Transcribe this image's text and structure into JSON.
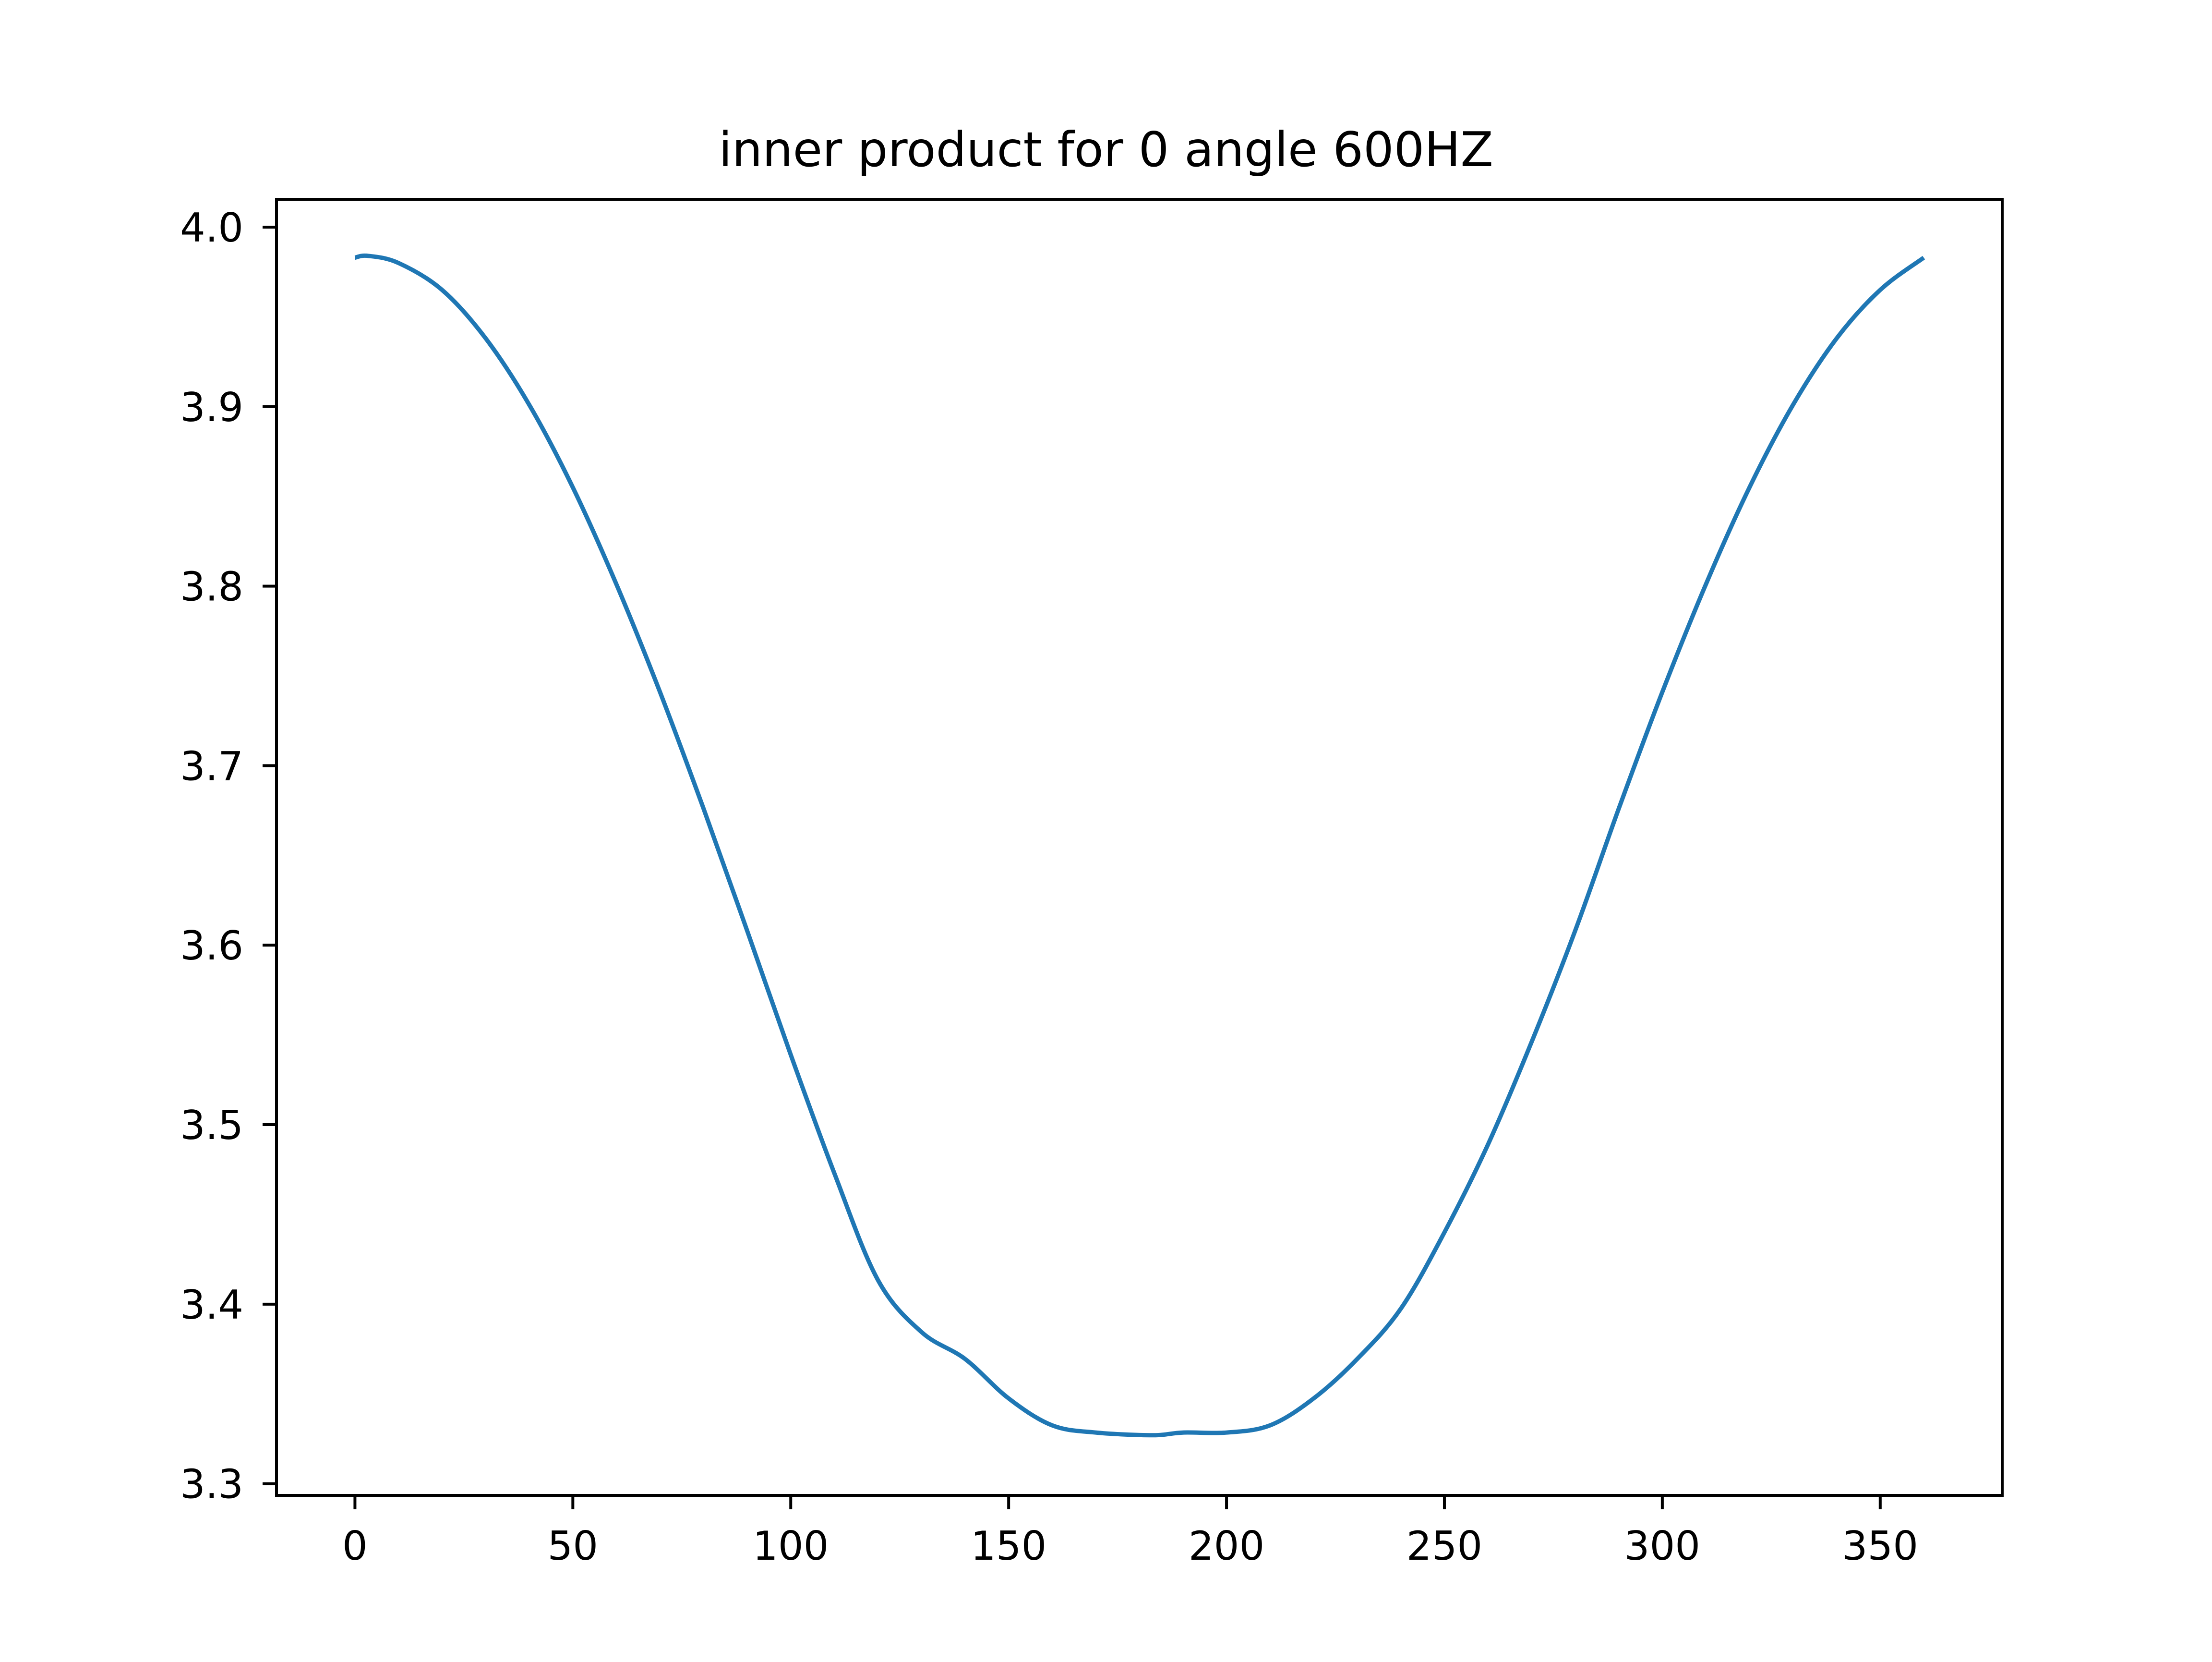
{
  "chart_data": {
    "type": "line",
    "title": "inner product for 0 angle 600HZ",
    "xlabel": "",
    "ylabel": "",
    "xlim": [
      -18,
      378
    ],
    "ylim": [
      3.2935,
      4.0155
    ],
    "xticks": [
      0,
      50,
      100,
      150,
      200,
      250,
      300,
      350
    ],
    "xtick_labels": [
      "0",
      "50",
      "100",
      "150",
      "200",
      "250",
      "300",
      "350"
    ],
    "yticks": [
      3.3,
      3.4,
      3.5,
      3.6,
      3.7,
      3.8,
      3.9,
      4.0
    ],
    "ytick_labels": [
      "3.3",
      "3.4",
      "3.5",
      "3.6",
      "3.7",
      "3.8",
      "3.9",
      "4.0"
    ],
    "grid": false,
    "legend": "none",
    "series": [
      {
        "color": "#1f77b4",
        "x": [
          0,
          3,
          10,
          20,
          30,
          40,
          50,
          60,
          70,
          80,
          90,
          100,
          110,
          120,
          130,
          140,
          150,
          160,
          170,
          183,
          190,
          200,
          210,
          220,
          230,
          240,
          250,
          260,
          270,
          280,
          290,
          300,
          310,
          320,
          330,
          340,
          350,
          360
        ],
        "y": [
          3.983,
          3.984,
          3.98,
          3.965,
          3.938,
          3.901,
          3.855,
          3.801,
          3.741,
          3.676,
          3.608,
          3.539,
          3.473,
          3.4135,
          3.3845,
          3.3695,
          3.3475,
          3.3325,
          3.3285,
          3.327,
          3.3285,
          3.3285,
          3.3325,
          3.3475,
          3.3695,
          3.3975,
          3.44,
          3.489,
          3.546,
          3.608,
          3.676,
          3.741,
          3.801,
          3.855,
          3.901,
          3.938,
          3.965,
          3.983
        ]
      }
    ]
  }
}
